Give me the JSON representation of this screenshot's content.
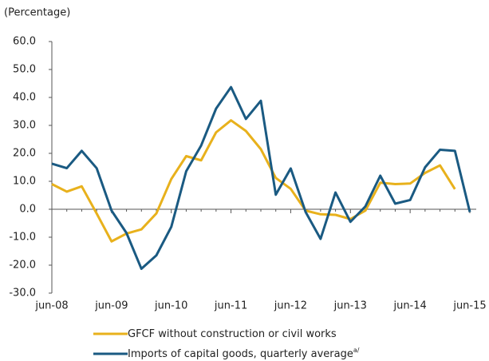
{
  "chart_data": {
    "type": "line",
    "title": "(Percentage)",
    "categories": [
      "jun-08",
      null,
      null,
      null,
      "jun-09",
      null,
      null,
      null,
      "jun-10",
      null,
      null,
      null,
      "jun-11",
      null,
      null,
      null,
      "jun-12",
      null,
      null,
      null,
      "jun-13",
      null,
      null,
      null,
      "jun-14",
      null,
      null,
      null,
      "jun-15"
    ],
    "series": [
      {
        "name": "GFCF without construction or civil works",
        "color": "#e8b11c",
        "values": [
          9,
          6.3,
          8.2,
          -1.5,
          -11.5,
          -8.7,
          -7.2,
          -1.5,
          10.8,
          19,
          17.5,
          27.5,
          31.8,
          28,
          21.5,
          11.2,
          7.3,
          -0.5,
          -1.8,
          -2,
          -3.5,
          -0.5,
          9.5,
          9,
          9.2,
          13,
          15.7,
          7.2,
          null
        ]
      },
      {
        "name": "Imports of capital goods, quarterly average",
        "note": "a/",
        "color": "#1a5a82",
        "values": [
          16.3,
          14.7,
          20.9,
          14.7,
          -0.5,
          -8.5,
          -21.3,
          -16.5,
          -6.3,
          13.6,
          22.8,
          36,
          43.7,
          32.3,
          38.8,
          5.2,
          14.6,
          -1,
          -10.6,
          6,
          -4.5,
          1,
          12,
          2,
          3.3,
          15,
          21.3,
          20.9,
          -1
        ]
      }
    ],
    "ylim": [
      -30,
      60
    ],
    "yticks": [
      {
        "value": -30,
        "label": "-30.0"
      },
      {
        "value": -20,
        "label": "-20.0"
      },
      {
        "value": -10,
        "label": "-10.0"
      },
      {
        "value": 0,
        "label": "0.0"
      },
      {
        "value": 10,
        "label": "10.0"
      },
      {
        "value": 20,
        "label": "20.0"
      },
      {
        "value": 30,
        "label": "30.0"
      },
      {
        "value": 40,
        "label": "40.0"
      },
      {
        "value": 50,
        "label": "50.0"
      },
      {
        "value": 60,
        "label": "60.0"
      }
    ]
  }
}
